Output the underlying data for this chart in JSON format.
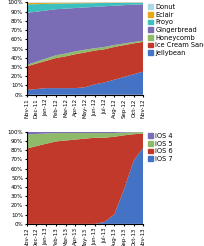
{
  "android_labels": [
    "Nov-11",
    "Dec-11",
    "Jan-12",
    "Feb-12",
    "Mar-12",
    "Apr-12",
    "May-12",
    "Jun-12",
    "Jul-12",
    "Aug-12",
    "Sep-12",
    "Oct-12",
    "Nov-12"
  ],
  "android_series_ordered": [
    "Jellybean",
    "Ice Cream Sandwich",
    "Honeycomb",
    "Gingerbread",
    "Froyo",
    "Eclair",
    "Donut"
  ],
  "android_series": {
    "Donut": [
      0.5,
      0.5,
      0.4,
      0.3,
      0.3,
      0.2,
      0.2,
      0.2,
      0.1,
      0.1,
      0.1,
      0.1,
      0.1
    ],
    "Eclair": [
      1.5,
      1.3,
      1.1,
      0.9,
      0.8,
      0.7,
      0.6,
      0.5,
      0.4,
      0.3,
      0.3,
      0.2,
      0.2
    ],
    "Froyo": [
      9.0,
      8.0,
      7.0,
      6.0,
      5.5,
      5.0,
      4.5,
      4.0,
      3.5,
      3.0,
      2.5,
      2.0,
      1.8
    ],
    "Gingerbread": [
      55,
      53,
      51,
      49,
      48,
      46,
      45,
      44,
      43,
      42,
      41,
      40,
      39
    ],
    "Honeycomb": [
      1.5,
      2.0,
      2.5,
      3.0,
      3.0,
      3.0,
      3.0,
      2.5,
      2.5,
      2.0,
      1.8,
      1.5,
      1.3
    ],
    "Ice Cream Sandwich": [
      25,
      27,
      29,
      32,
      34,
      36,
      37,
      36,
      35,
      35,
      34,
      33,
      32
    ],
    "Jellybean": [
      5,
      6,
      7,
      7,
      7,
      7,
      8,
      11,
      13,
      16,
      19,
      22,
      25
    ]
  },
  "android_colors": {
    "Donut": "#add8e6",
    "Eclair": "#e6a817",
    "Froyo": "#3bbfbf",
    "Gingerbread": "#7b6db5",
    "Honeycomb": "#8fba6a",
    "Ice Cream Sandwich": "#c0392b",
    "Jellybean": "#4472c4"
  },
  "ios_labels": [
    "Nov-12",
    "Dec-12",
    "Jan-13",
    "Feb-13",
    "Mar-13",
    "Apr-13",
    "May-13",
    "Jun-13",
    "Jul-13",
    "Aug-13",
    "Sep-13",
    "Oct-13",
    "Nov-13"
  ],
  "ios_series_ordered": [
    "iOS 7",
    "iOS 6",
    "iOS 5",
    "iOS 4"
  ],
  "ios_series": {
    "iOS 4": [
      3,
      2.5,
      2,
      1.5,
      1.5,
      1.5,
      1.5,
      1.5,
      1.5,
      1.5,
      1.0,
      0.8,
      0.5
    ],
    "iOS 5": [
      15,
      13,
      11,
      9,
      8,
      7,
      6,
      5,
      5,
      4,
      3,
      2,
      1.5
    ],
    "iOS 6": [
      80,
      83,
      86,
      88,
      89,
      90,
      91,
      91,
      90,
      83,
      58,
      28,
      15
    ],
    "iOS 7": [
      0,
      0,
      0,
      0,
      0,
      0,
      0,
      0,
      2,
      10,
      37,
      68,
      82
    ]
  },
  "ios_colors": {
    "iOS 4": "#7b6db5",
    "iOS 5": "#8fba6a",
    "iOS 6": "#c0392b",
    "iOS 7": "#4472c4"
  },
  "bg_color": "#ffffff",
  "legend_fontsize": 4.8,
  "tick_fontsize": 4.0
}
